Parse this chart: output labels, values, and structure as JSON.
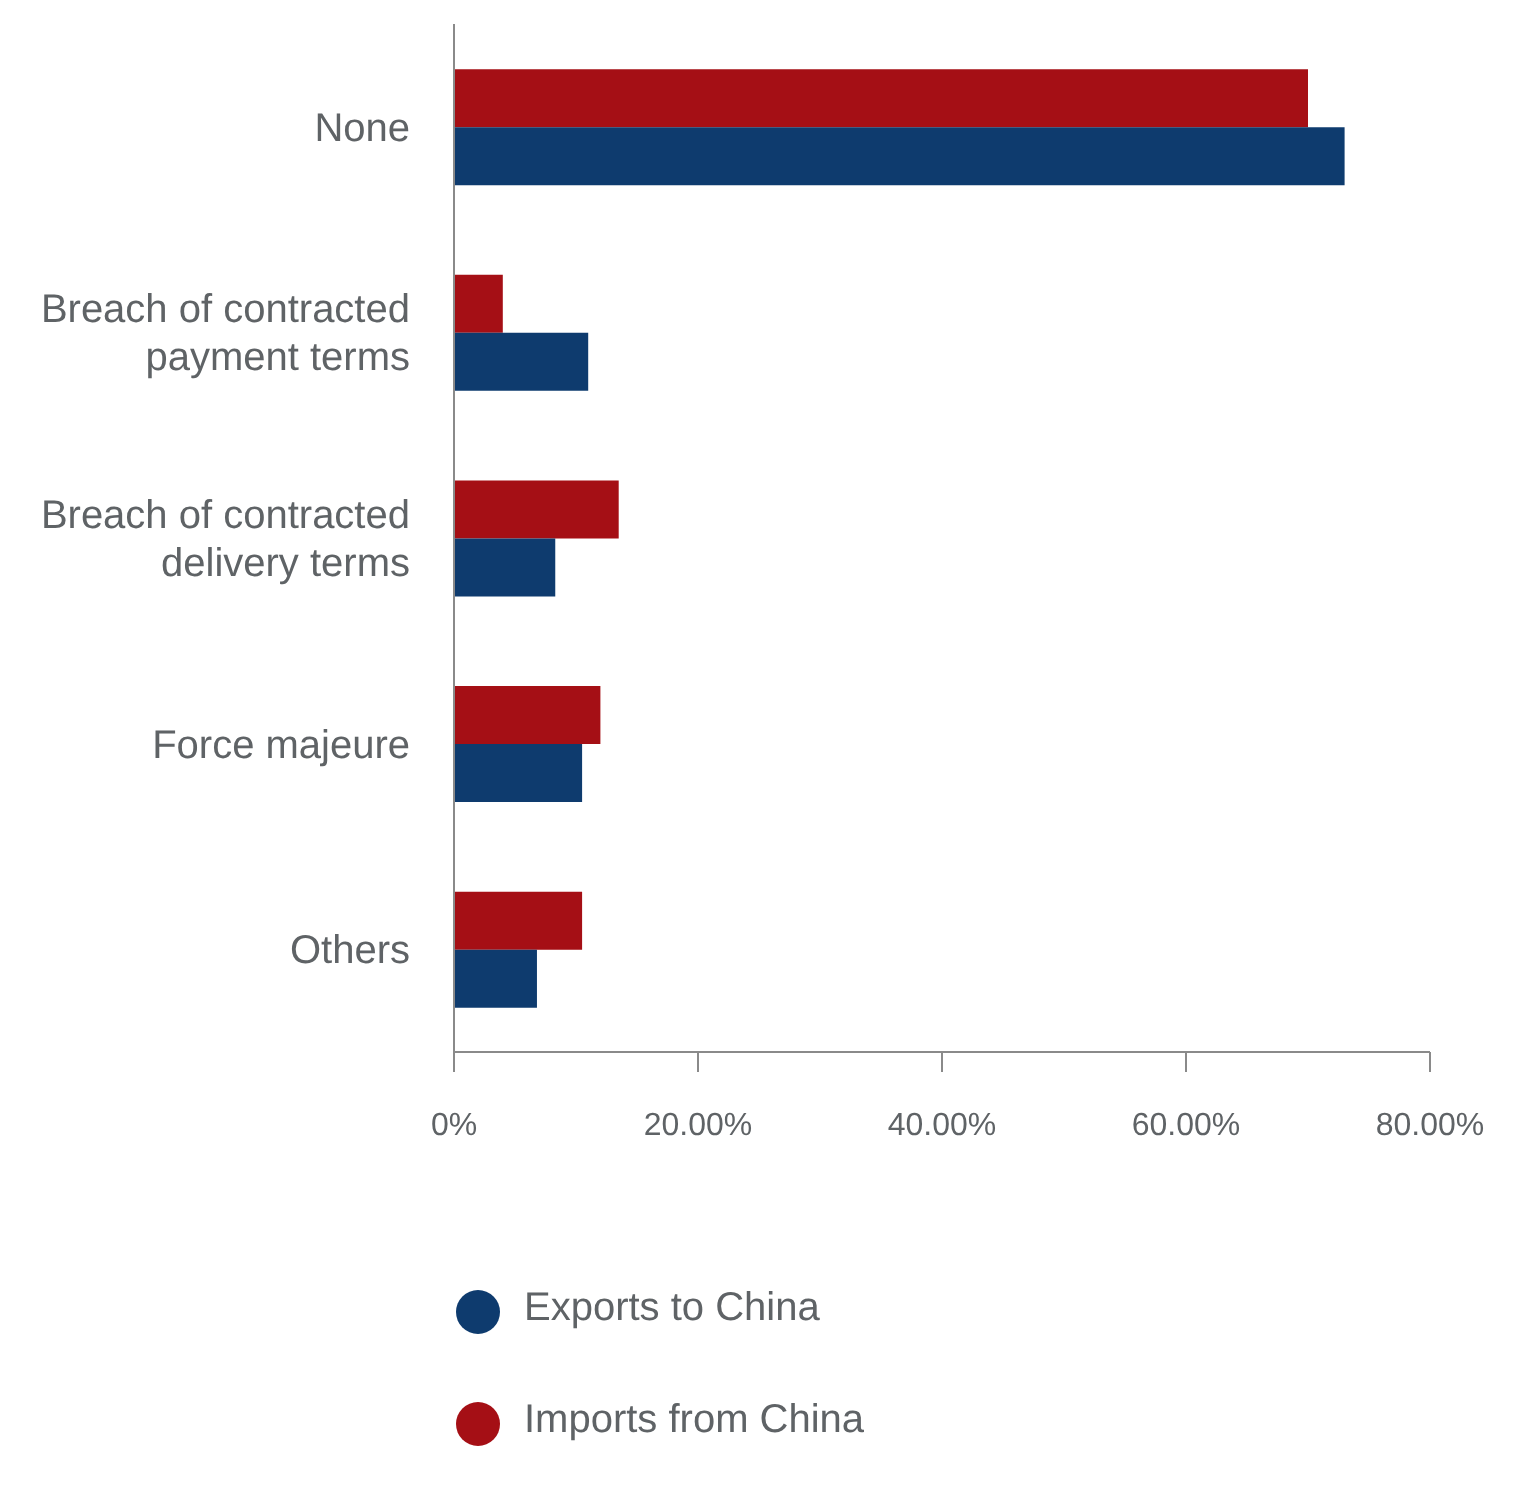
{
  "chart_data": {
    "type": "bar",
    "orientation": "horizontal",
    "categories": [
      "None",
      "Breach of contracted payment terms",
      "Breach of contracted delivery terms",
      "Force majeure",
      "Others"
    ],
    "series": [
      {
        "name": "Imports from China",
        "color": "#a50f15",
        "values": [
          70,
          4,
          13.5,
          12,
          10.5
        ]
      },
      {
        "name": "Exports to China",
        "color": "#0e3b6e",
        "values": [
          73,
          11,
          8.3,
          10.5,
          6.8
        ]
      }
    ],
    "xlim": [
      0,
      80
    ],
    "xticks": [
      {
        "value": 0,
        "label": "0%"
      },
      {
        "value": 20,
        "label": "20.00%"
      },
      {
        "value": 40,
        "label": "40.00%"
      },
      {
        "value": 60,
        "label": "60.00%"
      },
      {
        "value": 80,
        "label": "80.00%"
      }
    ],
    "grid": false,
    "legend": "bottom"
  }
}
